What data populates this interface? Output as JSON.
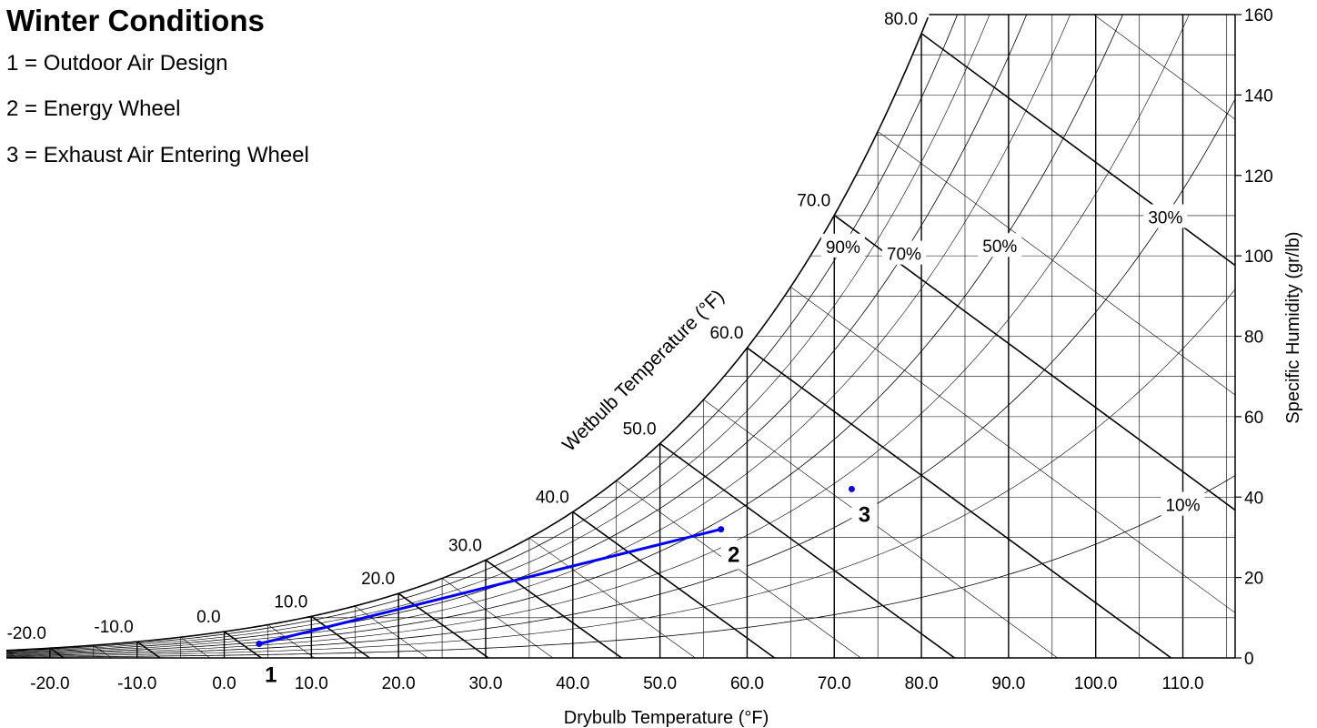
{
  "chart_data": {
    "type": "psychrometric",
    "title": "Winter Conditions",
    "legend": [
      "1 = Outdoor Air Design",
      "2 = Energy Wheel",
      "3 = Exhaust Air Entering Wheel"
    ],
    "xlabel": "Drybulb Temperature (°F)",
    "ylabel": "Specific Humidity (gr/lb)",
    "wetbulb_label": "Wetbulb Temperature (°F)",
    "xlim": [
      -25,
      116
    ],
    "ylim": [
      0,
      160
    ],
    "x_ticks": [
      -20,
      -10,
      0,
      10,
      20,
      30,
      40,
      50,
      60,
      70,
      80,
      90,
      100,
      110
    ],
    "x_tick_labels": [
      "-20.0",
      "-10.0",
      "0.0",
      "10.0",
      "20.0",
      "30.0",
      "40.0",
      "50.0",
      "60.0",
      "70.0",
      "80.0",
      "90.0",
      "100.0",
      "110.0"
    ],
    "y_ticks": [
      0,
      20,
      40,
      60,
      80,
      100,
      120,
      140,
      160
    ],
    "y_tick_labels": [
      "0",
      "20",
      "40",
      "60",
      "80",
      "100",
      "120",
      "140",
      "160"
    ],
    "wetbulb_lines": [
      -20,
      -10,
      0,
      10,
      20,
      30,
      40,
      50,
      60,
      70,
      80
    ],
    "wetbulb_labels": [
      "-20.0",
      "-10.0",
      "0.0",
      "10.0",
      "20.0",
      "30.0",
      "40.0",
      "50.0",
      "60.0",
      "70.0",
      "80.0"
    ],
    "rh_curves": [
      10,
      30,
      50,
      70,
      90
    ],
    "rh_labels": [
      "10%",
      "30%",
      "50%",
      "70%",
      "90%"
    ],
    "points": [
      {
        "label": "1",
        "drybulb": 4,
        "humidity": 3.5
      },
      {
        "label": "2",
        "drybulb": 57,
        "humidity": 32
      },
      {
        "label": "3",
        "drybulb": 72,
        "humidity": 42
      }
    ],
    "process_line": {
      "from": "1",
      "to": "2",
      "color": "#0000ff"
    },
    "colors": {
      "grid": "#000000",
      "process": "#0000ff",
      "point": "#0000ff"
    }
  }
}
